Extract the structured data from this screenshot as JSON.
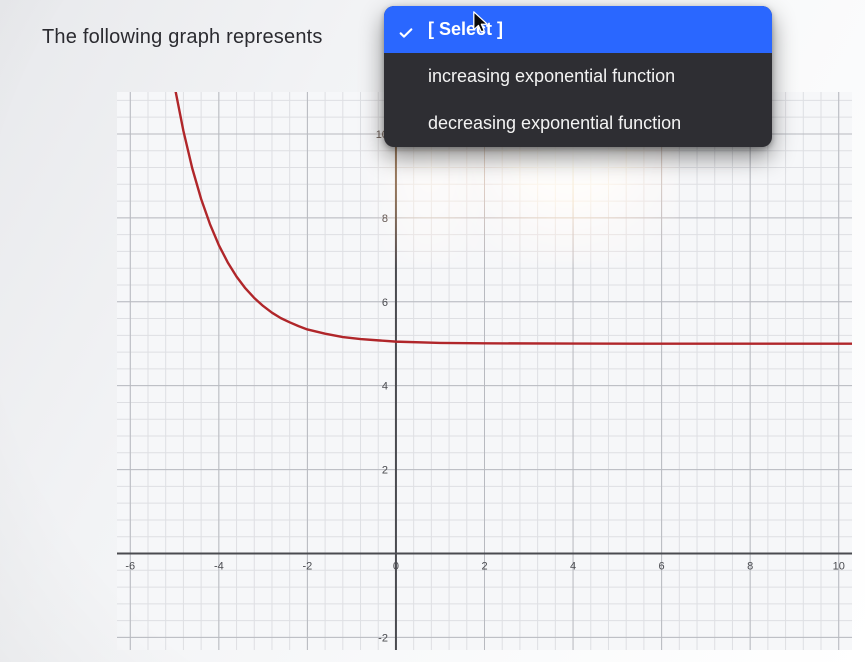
{
  "prompt": "The following graph represents ",
  "dropdown": {
    "selected_label": "[ Select ]",
    "option_increasing": "increasing exponential function",
    "option_decreasing": "decreasing exponential function"
  },
  "chart": {
    "type": "line",
    "background_color": "#f6f7f9",
    "grid_minor_color": "#dedfe3",
    "grid_major_color": "#b8bac0",
    "axis_color": "#4a4b50",
    "axis_width": 2,
    "curve_color": "#b0262a",
    "curve_width": 2.4,
    "xlim": [
      -6.3,
      10.3
    ],
    "ylim": [
      -2.3,
      11.0
    ],
    "x_major_step": 2,
    "y_major_step": 2,
    "minor_per_major": 5,
    "x_tick_labels": [
      "-6",
      "-4",
      "-2",
      "0",
      "2",
      "4",
      "6",
      "8",
      "10"
    ],
    "x_tick_values": [
      -6,
      -4,
      -2,
      0,
      2,
      4,
      6,
      8,
      10
    ],
    "y_tick_labels": [
      "-2",
      "2",
      "4",
      "6",
      "8",
      "10"
    ],
    "y_tick_values": [
      -2,
      2,
      4,
      6,
      8,
      10
    ],
    "tick_font_size": 11,
    "tick_color": "#4a4b50",
    "curve_asymptote": 5,
    "curve_points": [
      [
        -6.3,
        28.0
      ],
      [
        -6.0,
        21.0
      ],
      [
        -5.8,
        18.2
      ],
      [
        -5.6,
        15.9
      ],
      [
        -5.4,
        14.0
      ],
      [
        -5.2,
        12.44
      ],
      [
        -5.0,
        11.14
      ],
      [
        -4.8,
        10.07
      ],
      [
        -4.6,
        9.18
      ],
      [
        -4.4,
        8.45
      ],
      [
        -4.2,
        7.85
      ],
      [
        -4.0,
        7.35
      ],
      [
        -3.8,
        6.94
      ],
      [
        -3.6,
        6.6
      ],
      [
        -3.4,
        6.32
      ],
      [
        -3.2,
        6.09
      ],
      [
        -3.0,
        5.9
      ],
      [
        -2.8,
        5.74
      ],
      [
        -2.6,
        5.61
      ],
      [
        -2.4,
        5.51
      ],
      [
        -2.2,
        5.42
      ],
      [
        -2.0,
        5.34
      ],
      [
        -1.6,
        5.24
      ],
      [
        -1.2,
        5.16
      ],
      [
        -0.8,
        5.11
      ],
      [
        -0.4,
        5.08
      ],
      [
        0.0,
        5.05
      ],
      [
        1.0,
        5.02
      ],
      [
        2.0,
        5.01
      ],
      [
        4.0,
        5.003
      ],
      [
        6.0,
        5.001
      ],
      [
        8.0,
        5.0005
      ],
      [
        10.3,
        5.0002
      ]
    ]
  },
  "dropdown_style": {
    "bg": "#2e2e33",
    "selected_bg": "#2a67ff",
    "text_color": "#f3f3f3",
    "selected_text_color": "#ffffff",
    "font_size": 18,
    "border_radius": 10
  }
}
